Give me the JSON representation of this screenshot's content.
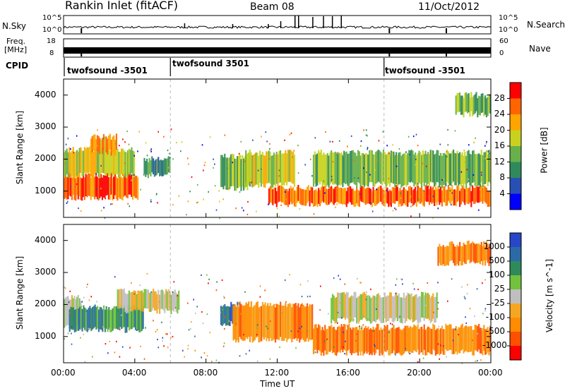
{
  "header": {
    "station": "Rankin Inlet (fitACF)",
    "beam": "Beam 08",
    "date": "11/Oct/2012"
  },
  "strips": {
    "nsky_label": "N.Sky",
    "nsky_ticks": [
      "10^5",
      "10^0"
    ],
    "nsearch_label": "N.Search",
    "nsearch_ticks": [
      "10^5",
      "10^0"
    ],
    "freq_label_1": "Freq.",
    "freq_label_2": "[MHz]",
    "freq_ticks": [
      "18",
      "8"
    ],
    "nave_label": "Nave",
    "nave_ticks": [
      "60",
      "0"
    ],
    "cpid_label": "CPID",
    "cpid_segments": [
      {
        "start_h": 0,
        "label": "twofsound -3501"
      },
      {
        "start_h": 6,
        "label": "twofsound 3501"
      },
      {
        "start_h": 18,
        "label": "twofsound -3501"
      }
    ]
  },
  "colors": {
    "power": [
      "#0000ff",
      "#2850b4",
      "#2f8a5b",
      "#67b04a",
      "#c8d21e",
      "#ffa500",
      "#ff6400",
      "#ff0000"
    ],
    "velocity": [
      "#2846c8",
      "#2b6aa6",
      "#2f8a5b",
      "#72c23b",
      "#bfbfbf",
      "#f5a623",
      "#ff8c00",
      "#ff5000",
      "#ff0000"
    ]
  },
  "chart_data": [
    {
      "type": "heatmap",
      "panel": "power",
      "ylabel": "Slant Range [km]",
      "yticks": [
        "1000",
        "2000",
        "3000",
        "4000"
      ],
      "ylim": [
        180,
        4500
      ],
      "xlim": [
        0,
        24
      ],
      "colorbar_label": "Power [dB]",
      "colorbar_ticks": [
        "4",
        "8",
        "12",
        "16",
        "20",
        "24",
        "28"
      ],
      "bands": [
        {
          "t0": 0.0,
          "t1": 4.2,
          "r0": 800,
          "r1": 1500,
          "level": 6
        },
        {
          "t0": 0.0,
          "t1": 4.0,
          "r0": 1500,
          "r1": 2300,
          "level": 4
        },
        {
          "t0": 1.5,
          "t1": 3.0,
          "r0": 2200,
          "r1": 2700,
          "level": 5
        },
        {
          "t0": 4.5,
          "t1": 6.0,
          "r0": 1500,
          "r1": 2000,
          "level": 2
        },
        {
          "t0": 8.8,
          "t1": 10.5,
          "r0": 1100,
          "r1": 2100,
          "level": 3
        },
        {
          "t0": 10.2,
          "t1": 13.0,
          "r0": 1200,
          "r1": 2200,
          "level": 4
        },
        {
          "t0": 11.5,
          "t1": 24.0,
          "r0": 600,
          "r1": 1100,
          "level": 6
        },
        {
          "t0": 14.0,
          "t1": 24.0,
          "r0": 1200,
          "r1": 2200,
          "level": 3
        },
        {
          "t0": 22.0,
          "t1": 24.0,
          "r0": 3400,
          "r1": 4000,
          "level": 3
        }
      ]
    },
    {
      "type": "heatmap",
      "panel": "velocity",
      "ylabel": "Slant Range [km]",
      "yticks": [
        "1000",
        "2000",
        "3000",
        "4000"
      ],
      "ylim": [
        180,
        4500
      ],
      "xlim": [
        0,
        24
      ],
      "colorbar_label": "Velocity [m s^-1]",
      "colorbar_ticks": [
        "1000",
        "500",
        "100",
        "25",
        "-25",
        "-100",
        "-500",
        "-1000"
      ],
      "bands": [
        {
          "t0": 0.0,
          "t1": 1.0,
          "r0": 1300,
          "r1": 2200,
          "level": 4
        },
        {
          "t0": 0.3,
          "t1": 4.5,
          "r0": 1200,
          "r1": 1900,
          "level": 2
        },
        {
          "t0": 3.0,
          "t1": 6.5,
          "r0": 1800,
          "r1": 2400,
          "level": 4
        },
        {
          "t0": 8.8,
          "t1": 9.8,
          "r0": 1400,
          "r1": 2000,
          "level": 1
        },
        {
          "t0": 9.5,
          "t1": 14.0,
          "r0": 900,
          "r1": 2000,
          "level": 6
        },
        {
          "t0": 14.0,
          "t1": 24.0,
          "r0": 500,
          "r1": 1300,
          "level": 6
        },
        {
          "t0": 15.0,
          "t1": 21.0,
          "r0": 1500,
          "r1": 2300,
          "level": 4
        },
        {
          "t0": 21.0,
          "t1": 24.0,
          "r0": 3300,
          "r1": 3900,
          "level": 6
        }
      ]
    }
  ],
  "time_axis": {
    "ticks": [
      "00:00",
      "04:00",
      "08:00",
      "12:00",
      "16:00",
      "20:00",
      "00:00"
    ],
    "label": "Time UT"
  }
}
